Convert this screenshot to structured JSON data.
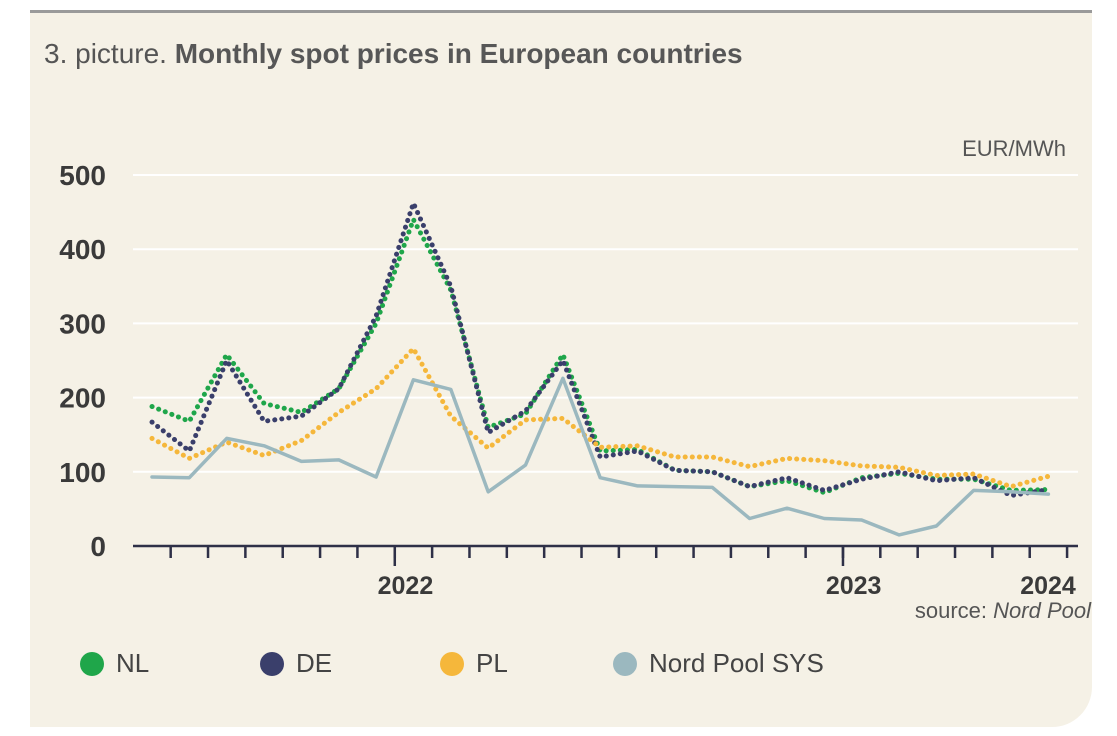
{
  "title": {
    "prefix": "3. picture.",
    "main": "Monthly spot prices in European countries"
  },
  "source": {
    "prefix": "source:",
    "name": "Nord Pool"
  },
  "chart_data": {
    "type": "line",
    "unit_label": "EUR/MWh",
    "ylim": [
      0,
      500
    ],
    "yticks": [
      0,
      100,
      200,
      300,
      400,
      500
    ],
    "x_start": "2021-06",
    "x_labels": [
      {
        "label": "2022",
        "month": "2022-01"
      },
      {
        "label": "2023",
        "month": "2023-01"
      },
      {
        "label": "2024",
        "month": "2024-01"
      }
    ],
    "grid": true,
    "legend_position": "bottom",
    "series": [
      {
        "name": "NL",
        "color": "#1fa64a",
        "style": "dotted",
        "values": [
          188,
          168,
          258,
          192,
          180,
          212,
          300,
          440,
          345,
          160,
          178,
          258,
          128,
          130,
          102,
          100,
          80,
          88,
          72,
          92,
          98,
          90,
          90,
          75,
          76
        ]
      },
      {
        "name": "DE",
        "color": "#3a3f6b",
        "style": "dotted",
        "values": [
          167,
          128,
          250,
          168,
          175,
          212,
          310,
          462,
          350,
          153,
          182,
          250,
          120,
          128,
          102,
          100,
          80,
          92,
          75,
          90,
          100,
          88,
          92,
          68,
          76
        ]
      },
      {
        "name": "PL",
        "color": "#f5b73b",
        "style": "dotted",
        "values": [
          145,
          118,
          140,
          122,
          142,
          180,
          212,
          266,
          175,
          132,
          170,
          172,
          133,
          135,
          120,
          120,
          107,
          118,
          115,
          108,
          106,
          95,
          97,
          80,
          94
        ]
      },
      {
        "name": "Nord Pool SYS",
        "color": "#9bb8bf",
        "style": "solid",
        "values": [
          93,
          92,
          145,
          135,
          114,
          116,
          93,
          224,
          211,
          73,
          109,
          226,
          92,
          81,
          80,
          79,
          37,
          51,
          37,
          35,
          15,
          27,
          75,
          73,
          70
        ]
      }
    ]
  }
}
